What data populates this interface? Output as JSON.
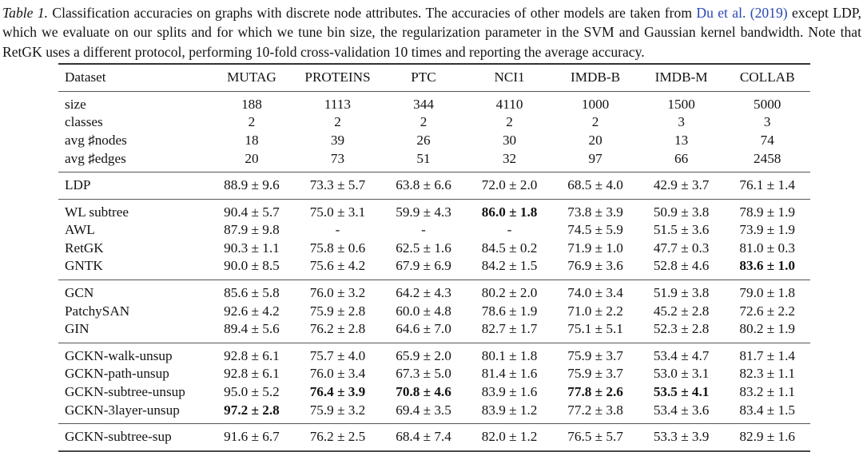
{
  "caption": {
    "label": "Table 1.",
    "before_link": " Classification accuracies on graphs with discrete node attributes. The accuracies of other models are taken from ",
    "link": "Du et al. (2019)",
    "after_link": " except LDP, which we evaluate on our splits and for which we tune bin size, the regularization parameter in the SVM and Gaussian kernel bandwidth. Note that RetGK uses a different protocol, performing 10-fold cross-validation 10 times and reporting the average accuracy."
  },
  "colors": {
    "link_blue": "#2846b4",
    "text": "#131313",
    "heavy_rule": "#333333",
    "light_rule": "#555555"
  },
  "table": {
    "columns": [
      "Dataset",
      "MUTAG",
      "PROTEINS",
      "PTC",
      "NCI1",
      "IMDB-B",
      "IMDB-M",
      "COLLAB"
    ],
    "sections": [
      {
        "name": "dataset-stats",
        "rows": [
          {
            "label": "size",
            "cells": [
              {
                "v": "188"
              },
              {
                "v": "1113"
              },
              {
                "v": "344"
              },
              {
                "v": "4110"
              },
              {
                "v": "1000"
              },
              {
                "v": "1500"
              },
              {
                "v": "5000"
              }
            ]
          },
          {
            "label": "classes",
            "cells": [
              {
                "v": "2"
              },
              {
                "v": "2"
              },
              {
                "v": "2"
              },
              {
                "v": "2"
              },
              {
                "v": "2"
              },
              {
                "v": "3"
              },
              {
                "v": "3"
              }
            ]
          },
          {
            "label": "avg ♯nodes",
            "cells": [
              {
                "v": "18"
              },
              {
                "v": "39"
              },
              {
                "v": "26"
              },
              {
                "v": "30"
              },
              {
                "v": "20"
              },
              {
                "v": "13"
              },
              {
                "v": "74"
              }
            ]
          },
          {
            "label": "avg ♯edges",
            "cells": [
              {
                "v": "20"
              },
              {
                "v": "73"
              },
              {
                "v": "51"
              },
              {
                "v": "32"
              },
              {
                "v": "97"
              },
              {
                "v": "66"
              },
              {
                "v": "2458"
              }
            ]
          }
        ]
      },
      {
        "name": "ldp-baseline",
        "rows": [
          {
            "label": "LDP",
            "cells": [
              {
                "v": "88.9 ± 9.6"
              },
              {
                "v": "73.3 ± 5.7"
              },
              {
                "v": "63.8 ± 6.6"
              },
              {
                "v": "72.0 ± 2.0"
              },
              {
                "v": "68.5 ± 4.0"
              },
              {
                "v": "42.9 ± 3.7"
              },
              {
                "v": "76.1 ± 1.4"
              }
            ]
          }
        ]
      },
      {
        "name": "graph-kernels",
        "rows": [
          {
            "label": "WL subtree",
            "cells": [
              {
                "v": "90.4 ± 5.7"
              },
              {
                "v": "75.0 ± 3.1"
              },
              {
                "v": "59.9 ± 4.3"
              },
              {
                "v": "86.0 ± 1.8",
                "b": true
              },
              {
                "v": "73.8 ± 3.9"
              },
              {
                "v": "50.9 ± 3.8"
              },
              {
                "v": "78.9 ± 1.9"
              }
            ]
          },
          {
            "label": "AWL",
            "cells": [
              {
                "v": "87.9 ± 9.8"
              },
              {
                "v": "-"
              },
              {
                "v": "-"
              },
              {
                "v": "-"
              },
              {
                "v": "74.5 ± 5.9"
              },
              {
                "v": "51.5 ± 3.6"
              },
              {
                "v": "73.9 ± 1.9"
              }
            ]
          },
          {
            "label": "RetGK",
            "cells": [
              {
                "v": "90.3 ± 1.1"
              },
              {
                "v": "75.8 ± 0.6"
              },
              {
                "v": "62.5 ± 1.6"
              },
              {
                "v": "84.5 ± 0.2"
              },
              {
                "v": "71.9 ± 1.0"
              },
              {
                "v": "47.7 ± 0.3"
              },
              {
                "v": "81.0 ± 0.3"
              }
            ]
          },
          {
            "label": "GNTK",
            "cells": [
              {
                "v": "90.0 ± 8.5"
              },
              {
                "v": "75.6 ± 4.2"
              },
              {
                "v": "67.9 ± 6.9"
              },
              {
                "v": "84.2 ± 1.5"
              },
              {
                "v": "76.9 ± 3.6"
              },
              {
                "v": "52.8 ± 4.6"
              },
              {
                "v": "83.6 ± 1.0",
                "b": true
              }
            ]
          }
        ]
      },
      {
        "name": "graph-neural-networks",
        "rows": [
          {
            "label": "GCN",
            "cells": [
              {
                "v": "85.6 ± 5.8"
              },
              {
                "v": "76.0 ± 3.2"
              },
              {
                "v": "64.2 ± 4.3"
              },
              {
                "v": "80.2 ± 2.0"
              },
              {
                "v": "74.0 ± 3.4"
              },
              {
                "v": "51.9 ± 3.8"
              },
              {
                "v": "79.0 ± 1.8"
              }
            ]
          },
          {
            "label": "PatchySAN",
            "cells": [
              {
                "v": "92.6 ± 4.2"
              },
              {
                "v": "75.9 ± 2.8"
              },
              {
                "v": "60.0 ± 4.8"
              },
              {
                "v": "78.6 ± 1.9"
              },
              {
                "v": "71.0 ± 2.2"
              },
              {
                "v": "45.2 ± 2.8"
              },
              {
                "v": "72.6 ± 2.2"
              }
            ]
          },
          {
            "label": "GIN",
            "cells": [
              {
                "v": "89.4 ± 5.6"
              },
              {
                "v": "76.2 ± 2.8"
              },
              {
                "v": "64.6 ± 7.0"
              },
              {
                "v": "82.7 ± 1.7"
              },
              {
                "v": "75.1 ± 5.1"
              },
              {
                "v": "52.3 ± 2.8"
              },
              {
                "v": "80.2 ± 1.9"
              }
            ]
          }
        ]
      },
      {
        "name": "gckn-unsupervised",
        "rows": [
          {
            "label": "GCKN-walk-unsup",
            "cells": [
              {
                "v": "92.8 ± 6.1"
              },
              {
                "v": "75.7 ± 4.0"
              },
              {
                "v": "65.9 ± 2.0"
              },
              {
                "v": "80.1 ± 1.8"
              },
              {
                "v": "75.9 ± 3.7"
              },
              {
                "v": "53.4 ± 4.7"
              },
              {
                "v": "81.7 ± 1.4"
              }
            ]
          },
          {
            "label": "GCKN-path-unsup",
            "cells": [
              {
                "v": "92.8 ± 6.1"
              },
              {
                "v": "76.0 ± 3.4"
              },
              {
                "v": "67.3 ± 5.0"
              },
              {
                "v": "81.4 ± 1.6"
              },
              {
                "v": "75.9 ± 3.7"
              },
              {
                "v": "53.0 ± 3.1"
              },
              {
                "v": "82.3 ± 1.1"
              }
            ]
          },
          {
            "label": "GCKN-subtree-unsup",
            "cells": [
              {
                "v": "95.0 ± 5.2"
              },
              {
                "v": "76.4 ± 3.9",
                "b": true
              },
              {
                "v": "70.8 ± 4.6",
                "b": true
              },
              {
                "v": "83.9 ± 1.6"
              },
              {
                "v": "77.8 ± 2.6",
                "b": true
              },
              {
                "v": "53.5 ± 4.1",
                "b": true
              },
              {
                "v": "83.2 ± 1.1"
              }
            ]
          },
          {
            "label": "GCKN-3layer-unsup",
            "cells": [
              {
                "v": "97.2 ± 2.8",
                "b": true
              },
              {
                "v": "75.9 ± 3.2"
              },
              {
                "v": "69.4 ± 3.5"
              },
              {
                "v": "83.9 ± 1.2"
              },
              {
                "v": "77.2 ± 3.8"
              },
              {
                "v": "53.4 ± 3.6"
              },
              {
                "v": "83.4 ± 1.5"
              }
            ]
          }
        ]
      },
      {
        "name": "gckn-supervised",
        "rows": [
          {
            "label": "GCKN-subtree-sup",
            "cells": [
              {
                "v": "91.6 ± 6.7"
              },
              {
                "v": "76.2 ± 2.5"
              },
              {
                "v": "68.4 ± 7.4"
              },
              {
                "v": "82.0 ± 1.2"
              },
              {
                "v": "76.5 ± 5.7"
              },
              {
                "v": "53.3 ± 3.9"
              },
              {
                "v": "82.9 ± 1.6"
              }
            ]
          }
        ]
      }
    ]
  }
}
